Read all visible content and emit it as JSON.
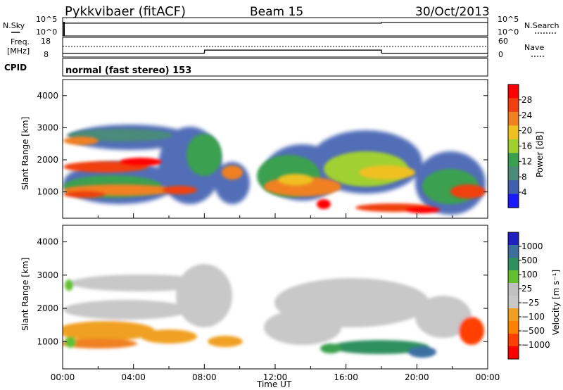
{
  "header": {
    "station": "Pykkvibaer (fitACF)",
    "beam": "Beam 15",
    "date": "30/Oct/2013"
  },
  "noise_panel": {
    "left_label": "N.Sky",
    "left_ticks": [
      "10^5",
      "10^0"
    ],
    "right_label": "N.Search",
    "right_ticks": [
      "10^5",
      "10^0"
    ]
  },
  "freq_panel": {
    "left_label_1": "Freq.",
    "left_label_2": "[MHz]",
    "left_ticks": [
      "18",
      "8"
    ],
    "right_label": "Nave",
    "right_ticks": [
      "60",
      "0"
    ]
  },
  "cpid": {
    "label": "CPID",
    "text": "normal (fast stereo) 153"
  },
  "colors": {
    "power_scale": [
      "#1a1aff",
      "#3f5fb0",
      "#4a8a7a",
      "#3aa050",
      "#a0d030",
      "#f0c020",
      "#f08020",
      "#f04010",
      "#ff0000"
    ],
    "velocity_scale": [
      "#ff0000",
      "#ff4000",
      "#ff8000",
      "#f0a020",
      "#c8c8c8",
      "#c0c0c0",
      "#60c030",
      "#2f8f5f",
      "#3a6fa0",
      "#2020c0"
    ],
    "frame": "#000000"
  },
  "chart_data": [
    {
      "type": "line",
      "panel": "noise",
      "x": [
        "00:00",
        "04:00",
        "08:00",
        "12:00",
        "16:00",
        "18:00",
        "20:00",
        "24:00"
      ],
      "series": [
        {
          "name": "N.Sky",
          "values": [
            30000,
            30000,
            30000,
            30000,
            30000,
            60000,
            60000,
            60000
          ]
        }
      ],
      "ylim": [
        1,
        100000
      ],
      "log": true
    },
    {
      "type": "line",
      "panel": "frequency",
      "x": [
        "00:00",
        "08:00",
        "08:01",
        "18:00",
        "18:01",
        "24:00"
      ],
      "series": [
        {
          "name": "Freq.",
          "values": [
            10,
            10,
            12,
            12,
            10,
            10
          ]
        }
      ],
      "ylim": [
        8,
        18
      ]
    },
    {
      "type": "heatmap",
      "panel": "power",
      "xlabel": "",
      "ylabel": "Slant Range [km]",
      "x_ticks": [],
      "y_ticks": [
        "1000",
        "2000",
        "3000",
        "4000"
      ],
      "xlim": [
        "00:00",
        "24:00"
      ],
      "ylim": [
        180,
        4500
      ],
      "colorbar_label": "Power [dB]",
      "colorbar_ticks": [
        "4",
        "8",
        "12",
        "16",
        "20",
        "24",
        "28"
      ],
      "clim": [
        0,
        32
      ]
    },
    {
      "type": "heatmap",
      "panel": "velocity",
      "xlabel": "Time UT",
      "ylabel": "Slant Range [km]",
      "x_ticks": [
        "00:00",
        "04:00",
        "08:00",
        "12:00",
        "16:00",
        "20:00",
        "00:00"
      ],
      "y_ticks": [
        "1000",
        "2000",
        "3000",
        "4000"
      ],
      "xlim": [
        "00:00",
        "24:00"
      ],
      "ylim": [
        180,
        4500
      ],
      "colorbar_label": "Velocity [m s⁻¹]",
      "colorbar_ticks": [
        "1000",
        "500",
        "100",
        "25",
        "−25",
        "−100",
        "−500",
        "−1000"
      ],
      "clim": [
        -1250,
        1250
      ]
    }
  ]
}
